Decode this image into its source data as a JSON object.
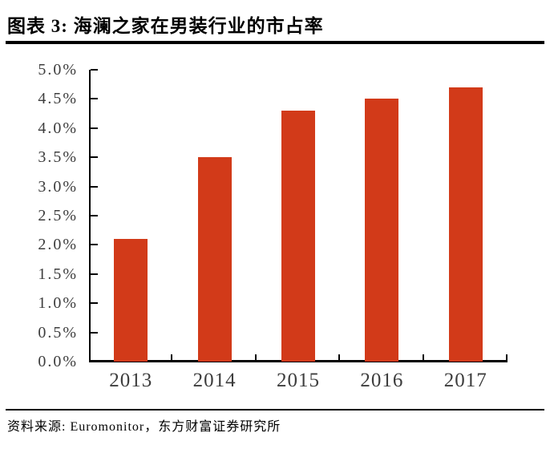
{
  "header": {
    "title": "图表 3: 海澜之家在男装行业的市占率"
  },
  "footer": {
    "source": "资料来源: Euromonitor，东方财富证券研究所"
  },
  "chart_data": {
    "type": "bar",
    "title": "海澜之家在男装行业的市占率",
    "categories": [
      "2013",
      "2014",
      "2015",
      "2016",
      "2017"
    ],
    "values": [
      2.1,
      3.5,
      4.3,
      4.5,
      4.7
    ],
    "unit": "%",
    "xlabel": "",
    "ylabel": "",
    "ylim": [
      0.0,
      5.0
    ],
    "ytick_step": 0.5,
    "ytick_labels": [
      "0.0%",
      "0.5%",
      "1.0%",
      "1.5%",
      "2.0%",
      "2.5%",
      "3.0%",
      "3.5%",
      "4.0%",
      "4.5%",
      "5.0%"
    ],
    "grid": false,
    "legend": "none",
    "colors": {
      "bar": "#d23a19",
      "axis": "#000000",
      "tick_label": "#3d3d3d"
    }
  }
}
